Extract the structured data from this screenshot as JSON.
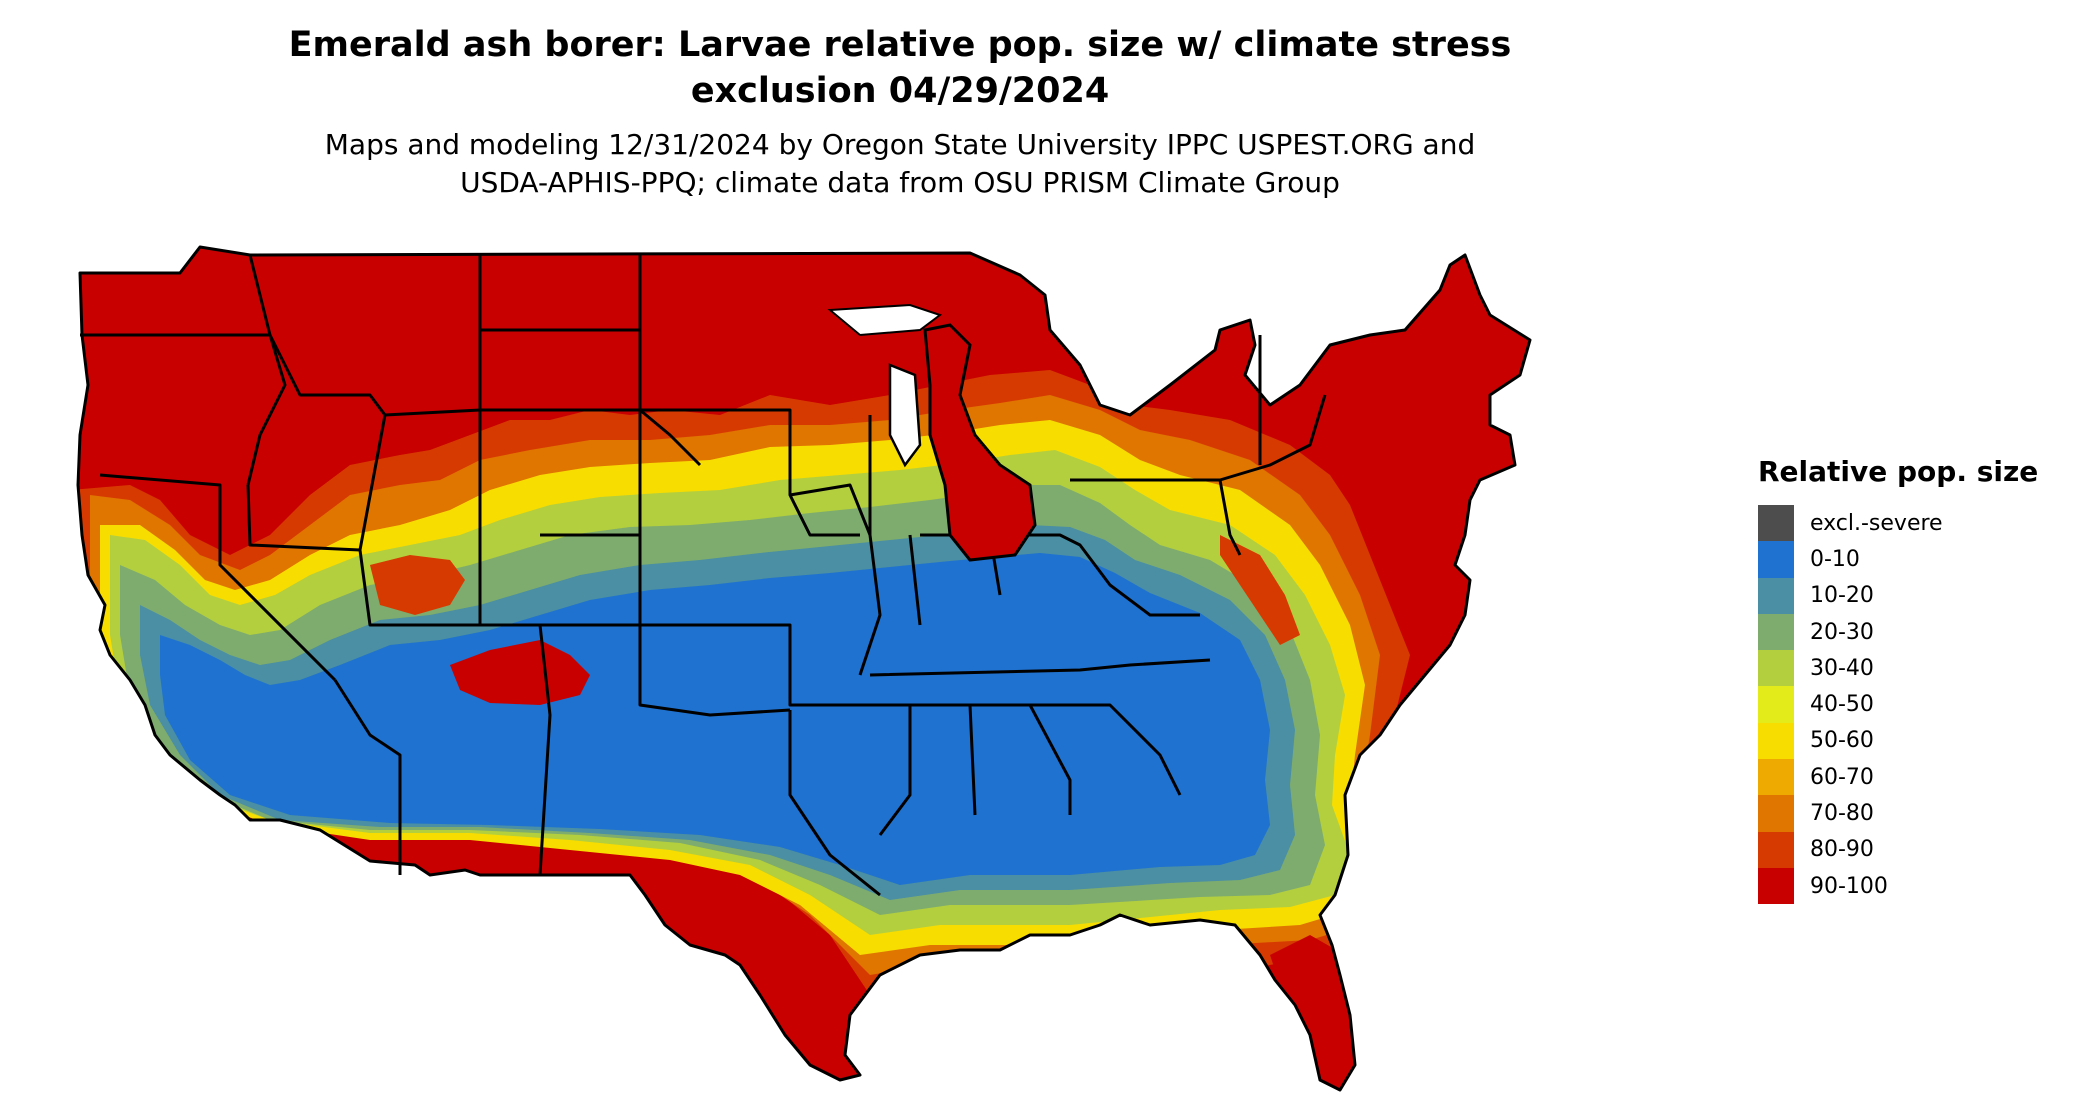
{
  "title_line1": "Emerald ash borer: Larvae relative pop. size w/ climate stress",
  "title_line2": "exclusion 04/29/2024",
  "subtitle_line1": "Maps and modeling 12/31/2024 by Oregon State University IPPC USPEST.ORG and",
  "subtitle_line2": "USDA-APHIS-PPQ; climate data from OSU PRISM Climate Group",
  "legend": {
    "title": "Relative pop. size",
    "items": [
      {
        "label": "excl.-severe",
        "color": "#4d4d4d"
      },
      {
        "label": "0-10",
        "color": "#1f72cf"
      },
      {
        "label": "10-20",
        "color": "#4a8fa3"
      },
      {
        "label": "20-30",
        "color": "#7eac6e"
      },
      {
        "label": "30-40",
        "color": "#b3cf3e"
      },
      {
        "label": "40-50",
        "color": "#e3ec1a"
      },
      {
        "label": "50-60",
        "color": "#f7dd00"
      },
      {
        "label": "60-70",
        "color": "#eeaa00"
      },
      {
        "label": "70-80",
        "color": "#e07500"
      },
      {
        "label": "80-90",
        "color": "#d73a00"
      },
      {
        "label": "90-100",
        "color": "#c80000"
      }
    ]
  }
}
